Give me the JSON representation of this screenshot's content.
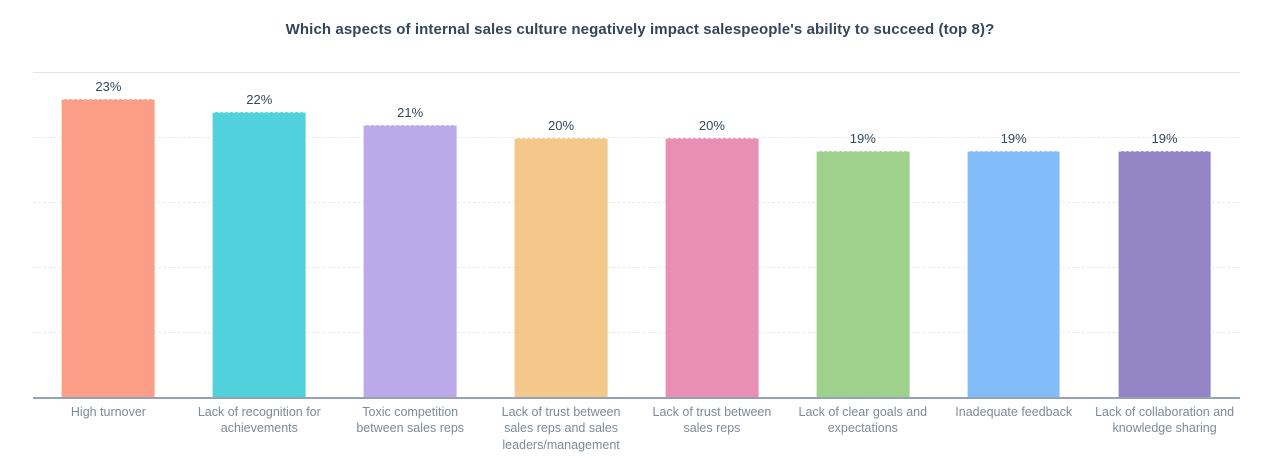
{
  "title": "Which aspects of internal sales culture negatively impact salespeople's ability to succeed (top 8)?",
  "chart_data": {
    "type": "bar",
    "title": "Which aspects of internal sales culture negatively impact salespeople's ability to succeed (top 8)?",
    "categories": [
      "High turnover",
      "Lack of recognition for achievements",
      "Toxic competition between sales reps",
      "Lack of trust between sales reps and sales leaders/management",
      "Lack of trust between sales reps",
      "Lack of clear goals and expectations",
      "Inadequate feedback",
      "Lack of collaboration and knowledge sharing"
    ],
    "values": [
      23,
      22,
      21,
      20,
      20,
      19,
      19,
      19
    ],
    "value_labels": [
      "23%",
      "22%",
      "21%",
      "20%",
      "20%",
      "19%",
      "19%",
      "19%"
    ],
    "bar_colors": [
      "#fb9e87",
      "#51d1db",
      "#bca9ea",
      "#f4c78a",
      "#e98fb3",
      "#9ed18c",
      "#83bdf9",
      "#9384c6"
    ],
    "xlabel": "",
    "ylabel": "",
    "ylim": [
      0,
      25
    ],
    "gridline_values": [
      5,
      10,
      15,
      20,
      25
    ],
    "grid": "horizontal dashed, top line solid",
    "legend": "none",
    "y_axis_labels_visible": false
  },
  "style_colors": {
    "title_text": "#33475b",
    "value_label_text": "#33475b",
    "category_label_text": "#7c8a99",
    "axis_line": "#94a3b3",
    "gridline": "#e7ebef",
    "background": "#ffffff"
  }
}
